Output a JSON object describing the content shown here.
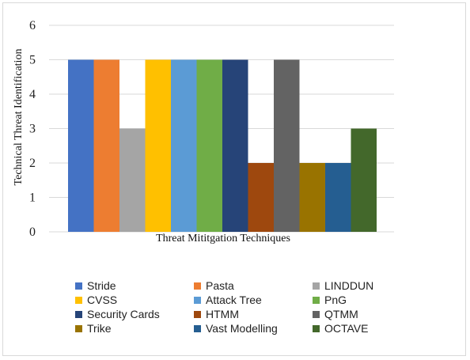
{
  "chart_data": {
    "type": "bar",
    "title": "",
    "xlabel": "Threat Mititgation Techniques",
    "ylabel": "Technical Threat Identification",
    "ylim": [
      0,
      6
    ],
    "yticks": [
      "0",
      "1",
      "2",
      "3",
      "4",
      "5",
      "6"
    ],
    "grid": "horizontal",
    "legend_position": "bottom",
    "series": [
      {
        "name": "Stride",
        "value": 5,
        "color": "#4472C4"
      },
      {
        "name": "Pasta",
        "value": 5,
        "color": "#ED7D31"
      },
      {
        "name": "LINDDUN",
        "value": 3,
        "color": "#A5A5A5"
      },
      {
        "name": "CVSS",
        "value": 5,
        "color": "#FFC000"
      },
      {
        "name": "Attack Tree",
        "value": 5,
        "color": "#5B9BD5"
      },
      {
        "name": "PnG",
        "value": 5,
        "color": "#70AD47"
      },
      {
        "name": "Security Cards",
        "value": 5,
        "color": "#264478"
      },
      {
        "name": "HTMM",
        "value": 2,
        "color": "#9E480E"
      },
      {
        "name": "QTMM",
        "value": 5,
        "color": "#636363"
      },
      {
        "name": "Trike",
        "value": 2,
        "color": "#997300"
      },
      {
        "name": "Vast Modelling",
        "value": 2,
        "color": "#255E91"
      },
      {
        "name": "OCTAVE",
        "value": 3,
        "color": "#43682B"
      }
    ]
  }
}
